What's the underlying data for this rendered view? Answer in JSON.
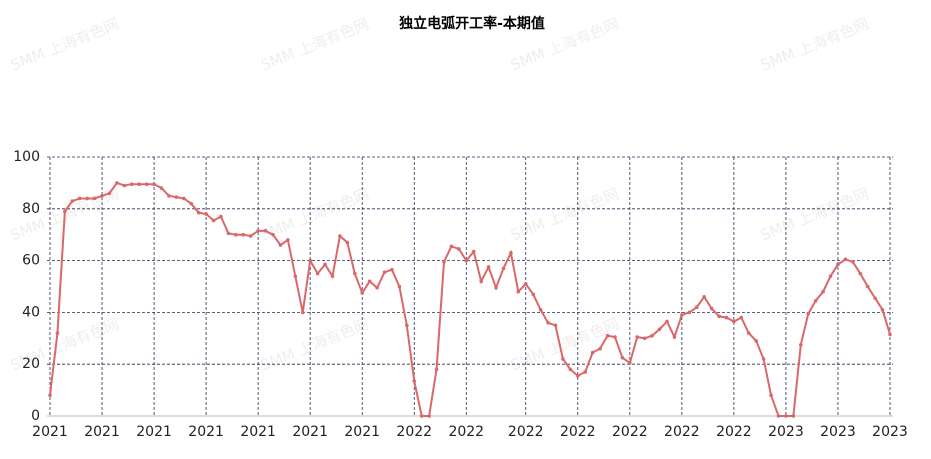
{
  "chart_data": {
    "type": "line",
    "title": "独立电弧开工率-本期值",
    "watermark": "SMM 上海有色网",
    "categories": [
      "2021",
      null,
      null,
      null,
      null,
      null,
      null,
      "2021",
      null,
      null,
      null,
      null,
      null,
      null,
      "2021",
      null,
      null,
      null,
      null,
      null,
      null,
      "2021",
      null,
      null,
      null,
      null,
      null,
      null,
      "2021",
      null,
      null,
      null,
      null,
      null,
      null,
      "2021",
      null,
      null,
      null,
      null,
      null,
      null,
      "2021",
      null,
      null,
      null,
      null,
      null,
      null,
      "2022",
      null,
      null,
      null,
      null,
      null,
      null,
      "2022",
      null,
      null,
      null,
      null,
      null,
      null,
      null,
      "2022",
      null,
      null,
      null,
      null,
      null,
      null,
      "2022",
      null,
      null,
      null,
      null,
      null,
      null,
      "2022",
      null,
      null,
      null,
      null,
      null,
      null,
      "2022",
      null,
      null,
      null,
      null,
      null,
      null,
      "2022",
      null,
      null,
      null,
      null,
      null,
      null,
      "2023",
      null,
      null,
      null,
      null,
      null,
      null,
      "2023",
      null,
      null,
      null,
      null,
      null,
      null,
      "2023"
    ],
    "series": [
      {
        "name": "独立电弧开工率-本期值",
        "color": "#d9686a",
        "values": [
          8,
          32,
          79,
          83,
          84,
          84,
          84,
          85,
          86,
          90,
          89,
          89.5,
          89.5,
          89.5,
          89.5,
          88,
          85,
          84.5,
          84,
          82,
          78.5,
          78,
          75.5,
          77,
          70.5,
          70,
          70,
          69.5,
          71.5,
          71.5,
          70,
          66,
          68,
          54,
          40,
          60,
          55,
          58.5,
          54,
          69.5,
          67,
          55,
          47.5,
          52,
          49.5,
          55.5,
          56.5,
          50,
          35,
          13.5,
          0,
          0,
          18,
          59.5,
          65.5,
          64.5,
          60,
          63.5,
          52,
          57.5,
          49.5,
          57,
          63,
          48,
          51,
          47,
          41,
          36,
          35,
          22,
          18,
          15.5,
          17,
          24.5,
          26,
          31,
          30.5,
          22.5,
          20.5,
          30.5,
          30,
          31,
          33.5,
          36.5,
          30.5,
          39,
          40,
          42,
          46,
          41.5,
          38.5,
          38,
          36.5,
          38,
          32,
          29,
          22,
          8,
          0,
          0,
          0,
          27.5,
          39.5,
          44.5,
          48,
          54,
          58.5,
          60.5,
          59.5,
          55,
          50,
          45.5,
          41,
          31.5
        ]
      }
    ],
    "ylim": [
      0,
      100
    ],
    "yticks": [
      0,
      20,
      40,
      60,
      80,
      100
    ],
    "grid": true
  }
}
